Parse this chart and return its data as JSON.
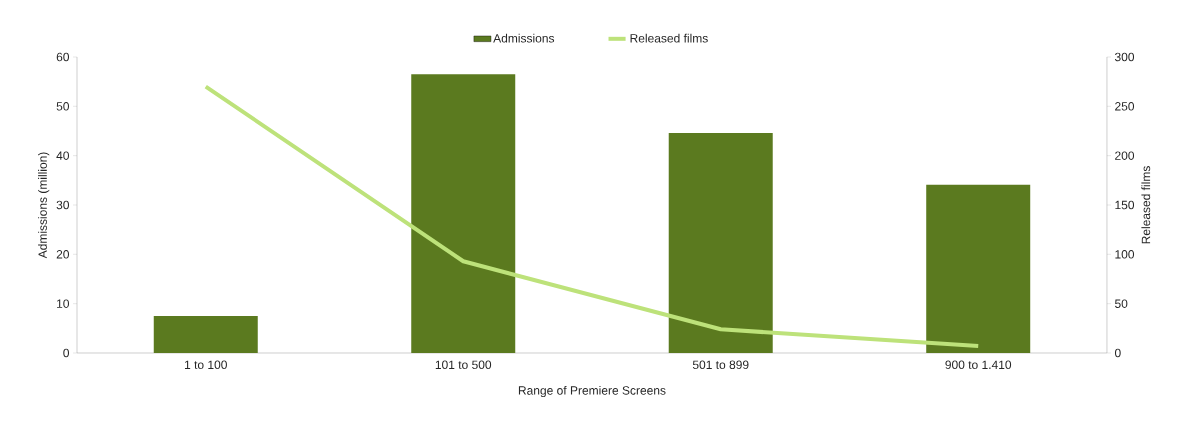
{
  "chart_data": {
    "type": "bar",
    "xlabel": "Range of Premiere Screens",
    "ylabel": "Admissions (million)",
    "y2label": "Released films",
    "categories": [
      "1 to 100",
      "101 to 500",
      "501 to 899",
      "900 to 1.410"
    ],
    "series": [
      {
        "name": "Admissions",
        "color": "#5b7a1f",
        "values": [
          7.5,
          56.5,
          44.6,
          34.1
        ]
      },
      {
        "name": "Released films",
        "type": "line",
        "axis": "y2",
        "color": "#bde27a",
        "values": [
          270,
          93,
          24,
          7
        ]
      }
    ],
    "ylim": [
      0,
      60
    ],
    "yticks": [
      0,
      10,
      20,
      30,
      40,
      50,
      60
    ],
    "y2lim": [
      0,
      300
    ],
    "y2ticks": [
      0,
      50,
      100,
      150,
      200,
      250,
      300
    ],
    "legend": "top",
    "grid": false
  }
}
